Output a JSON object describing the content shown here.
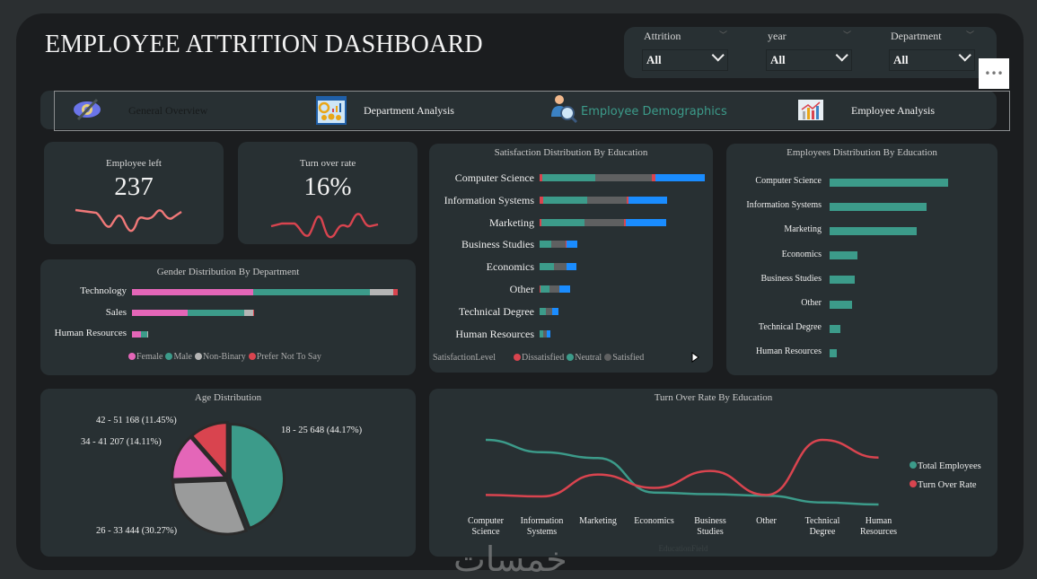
{
  "header": {
    "title": "EMPLOYEE ATTRITION DASHBOARD"
  },
  "filters": [
    {
      "label": "Attrition",
      "value": "All"
    },
    {
      "label": "year",
      "value": "All"
    },
    {
      "label": "Department",
      "value": "All"
    }
  ],
  "more_label": "•••",
  "nav": [
    {
      "label": "General Overview",
      "icon": "eye-slash-icon",
      "active": false
    },
    {
      "label": "Department Analysis",
      "icon": "dashboard-presentation-icon",
      "active": false
    },
    {
      "label": "Employee Demographics",
      "icon": "user-search-icon",
      "active": true
    },
    {
      "label": "Employee Analysis",
      "icon": "bar-chart-icon",
      "active": false
    }
  ],
  "kpis": [
    {
      "label": "Employee left",
      "value": "237"
    },
    {
      "label": "Turn over rate",
      "value": "16%"
    }
  ],
  "colors": {
    "teal": "#3c9b8a",
    "red": "#d9444f",
    "pink": "#e466b8",
    "grey": "#5f6061",
    "lightgrey": "#b5b5b5",
    "blue": "#1a8cff",
    "card": "#283033",
    "active_nav": "#3c9b8a"
  },
  "watermark": "خمسات",
  "chart_data": [
    {
      "id": "gender",
      "type": "bar",
      "orientation": "horizontal",
      "stacked": true,
      "title": "Gender Distribution By Department",
      "categories": [
        "Technology",
        "Sales",
        "Human Resources"
      ],
      "series": [
        {
          "name": "Female",
          "color": "#e466b8",
          "values": [
            135,
            62,
            10
          ]
        },
        {
          "name": "Male",
          "color": "#3c9b8a",
          "values": [
            130,
            63,
            7
          ]
        },
        {
          "name": "Non-Binary",
          "color": "#b5b5b5",
          "values": [
            26,
            10,
            1
          ]
        },
        {
          "name": "Prefer Not To Say",
          "color": "#d9444f",
          "values": [
            5,
            1,
            0
          ]
        }
      ],
      "legend": "bottom"
    },
    {
      "id": "satisfaction",
      "type": "bar",
      "orientation": "horizontal",
      "stacked": true,
      "title": "Satisfaction Distribution By Education",
      "legend_title": "SatisfactionLevel",
      "categories": [
        "Computer Science",
        "Information Systems",
        "Marketing",
        "Business Studies",
        "Economics",
        "Other",
        "Technical Degree",
        "Human Resources"
      ],
      "series": [
        {
          "name": "Dissatisfied",
          "color": "#d9444f",
          "values": [
            3,
            4,
            2,
            0,
            0,
            1,
            0,
            0
          ]
        },
        {
          "name": "Neutral",
          "color": "#3c9b8a",
          "values": [
            59,
            49,
            48,
            13,
            16,
            10,
            7,
            4
          ]
        },
        {
          "name": "Satisfied",
          "color": "#5f6061",
          "values": [
            63,
            44,
            44,
            16,
            14,
            11,
            7,
            4
          ]
        },
        {
          "color": "#d9444f",
          "values": [
            4,
            2,
            2,
            1,
            0,
            0,
            0,
            0
          ]
        },
        {
          "color": "#1a8cff",
          "values": [
            55,
            43,
            45,
            12,
            11,
            12,
            7,
            4
          ]
        }
      ],
      "legend": "bottom"
    },
    {
      "id": "empdist",
      "type": "bar",
      "orientation": "horizontal",
      "title": "Employees Distribution By Education",
      "categories": [
        "Computer Science",
        "Information Systems",
        "Marketing",
        "Economics",
        "Business Studies",
        "Other",
        "Technical Degree",
        "Human Resources"
      ],
      "values": [
        439,
        360,
        323,
        103,
        93,
        83,
        40,
        27
      ],
      "color": "#3c9b8a"
    },
    {
      "id": "age",
      "type": "pie",
      "title": "Age Distribution",
      "slices": [
        {
          "label": "18 - 25",
          "value": 648,
          "percent": "44.17%",
          "color": "#3c9b8a"
        },
        {
          "label": "26 - 33",
          "value": 444,
          "percent": "30.27%",
          "color": "#9a9b9b"
        },
        {
          "label": "34 - 41",
          "value": 207,
          "percent": "14.11%",
          "color": "#e466b8"
        },
        {
          "label": "42 - 51",
          "value": 168,
          "percent": "11.45%",
          "color": "#d9444f"
        }
      ]
    },
    {
      "id": "turnover",
      "type": "line",
      "title": "Turn Over Rate By Education",
      "xlabel": "EducationField",
      "categories": [
        "Computer Science",
        "Information Systems",
        "Marketing",
        "Economics",
        "Business Studies",
        "Other",
        "Technical Degree",
        "Human Resources"
      ],
      "series": [
        {
          "name": "Total Employees",
          "color": "#3c9b8a",
          "values": [
            439,
            360,
            323,
            103,
            93,
            83,
            40,
            27
          ]
        },
        {
          "name": "Turn Over Rate",
          "color": "#d9444f",
          "values": [
            13.2,
            13.0,
            16.1,
            14.2,
            16.6,
            13.2,
            21.0,
            18.5
          ]
        }
      ],
      "legend": "right"
    }
  ]
}
